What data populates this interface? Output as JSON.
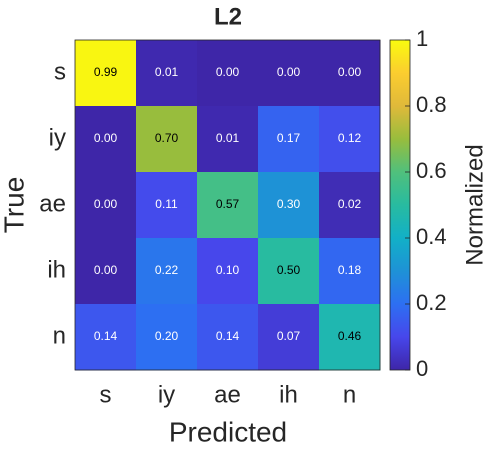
{
  "chart_data": {
    "type": "heatmap",
    "title": "L2",
    "x_label": "Predicted",
    "y_label": "True",
    "x_categories": [
      "s",
      "iy",
      "ae",
      "ih",
      "n"
    ],
    "y_categories": [
      "s",
      "iy",
      "ae",
      "ih",
      "n"
    ],
    "values": [
      [
        0.99,
        0.01,
        0.0,
        0.0,
        0.0
      ],
      [
        0.0,
        0.7,
        0.01,
        0.17,
        0.12
      ],
      [
        0.0,
        0.11,
        0.57,
        0.3,
        0.02
      ],
      [
        0.0,
        0.22,
        0.1,
        0.5,
        0.18
      ],
      [
        0.14,
        0.2,
        0.14,
        0.07,
        0.46
      ]
    ],
    "value_labels": [
      [
        "0.99",
        "0.01",
        "0.00",
        "0.00",
        "0.00"
      ],
      [
        "0.00",
        "0.70",
        "0.01",
        "0.17",
        "0.12"
      ],
      [
        "0.00",
        "0.11",
        "0.57",
        "0.30",
        "0.02"
      ],
      [
        "0.00",
        "0.22",
        "0.10",
        "0.50",
        "0.18"
      ],
      [
        "0.14",
        "0.20",
        "0.14",
        "0.07",
        "0.46"
      ]
    ],
    "colormap": "parula",
    "colorbar_label": "Normalized",
    "clim": [
      0,
      1
    ],
    "cticks": [
      0,
      0.2,
      0.4,
      0.6,
      0.8,
      1
    ]
  }
}
